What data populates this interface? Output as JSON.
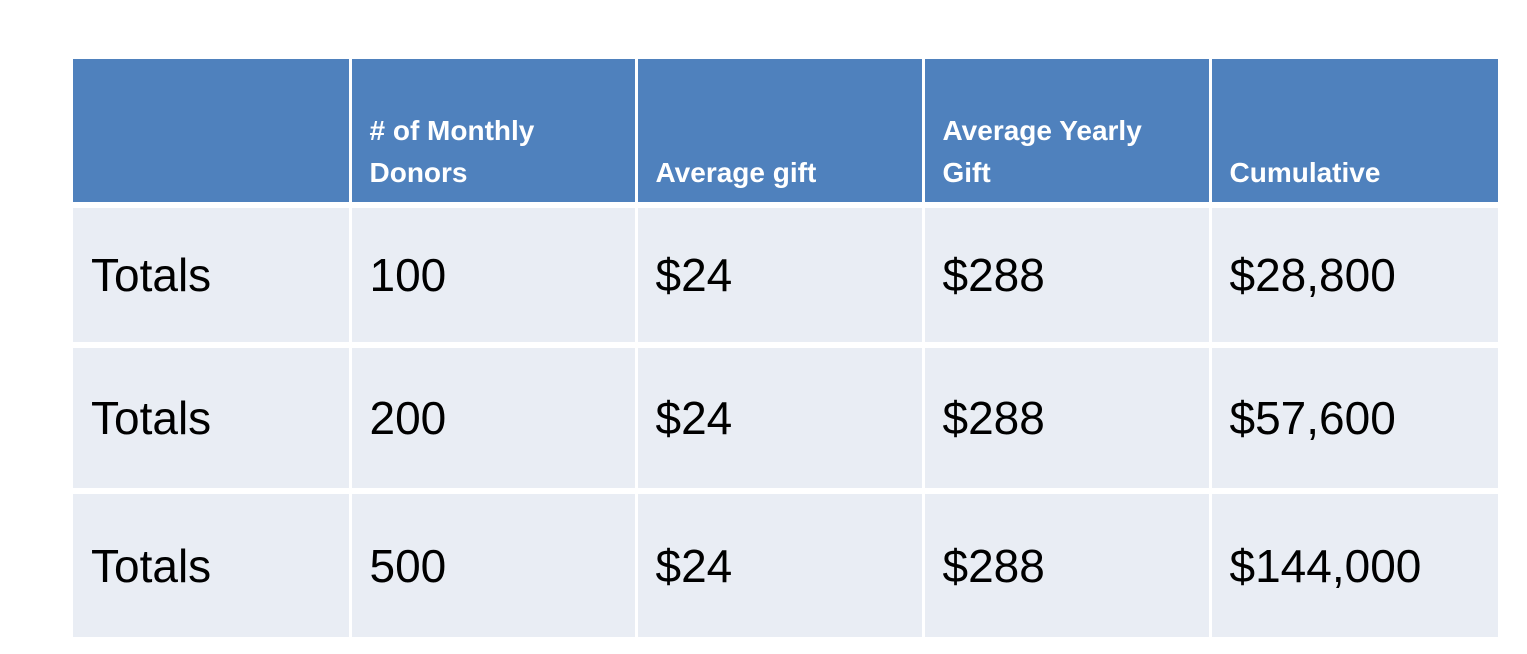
{
  "table": {
    "headers": [
      "",
      "# of Monthly Donors",
      "Average gift",
      "Average Yearly Gift",
      "Cumulative"
    ],
    "rows": [
      [
        "Totals",
        "100",
        "$24",
        "$288",
        "$28,800"
      ],
      [
        "Totals",
        "200",
        "$24",
        "$288",
        "$57,600"
      ],
      [
        "Totals",
        "500",
        "$24",
        "$288",
        "$144,000"
      ]
    ]
  },
  "colors": {
    "header_bg": "#4f81bd",
    "row_bg": "#e9edf4",
    "header_text": "#ffffff",
    "body_text": "#000000"
  }
}
